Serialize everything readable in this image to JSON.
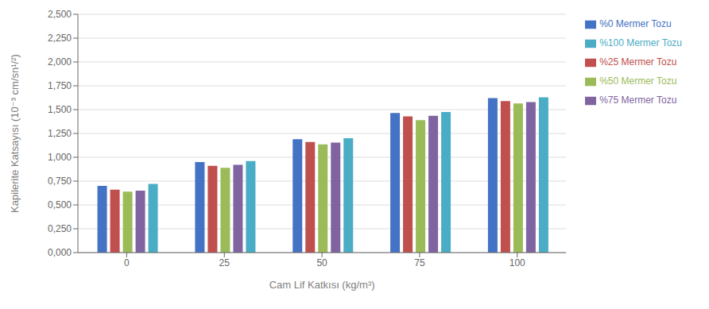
{
  "chart_data": {
    "type": "bar",
    "xlabel": "Cam Lif Katkısı (kg/m³)",
    "ylabel": "Kapilerite Katsayısı (10⁻³ cm/sn¹/²)",
    "categories": [
      "0",
      "25",
      "50",
      "75",
      "100"
    ],
    "series": [
      {
        "name": "%0 Mermer Tozu",
        "color": "#4472C4",
        "values": [
          0.7,
          0.95,
          1.19,
          1.465,
          1.62
        ]
      },
      {
        "name": "%25 Mermer Tozu",
        "color": "#C0504D",
        "values": [
          0.66,
          0.91,
          1.16,
          1.43,
          1.59
        ]
      },
      {
        "name": "%50 Mermer Tozu",
        "color": "#9BBB59",
        "values": [
          0.64,
          0.89,
          1.135,
          1.39,
          1.565
        ]
      },
      {
        "name": "%75 Mermer Tozu",
        "color": "#8064A2",
        "values": [
          0.65,
          0.92,
          1.155,
          1.435,
          1.58
        ]
      },
      {
        "name": "%100 Mermer Tozu",
        "color": "#4BACC6",
        "values": [
          0.72,
          0.96,
          1.2,
          1.475,
          1.63
        ]
      }
    ],
    "ylim": [
      0.0,
      2.5
    ],
    "yticks": [
      {
        "value": 0.0,
        "label": "0,000"
      },
      {
        "value": 0.25,
        "label": "0,250"
      },
      {
        "value": 0.5,
        "label": "0,500"
      },
      {
        "value": 0.75,
        "label": "0,750"
      },
      {
        "value": 1.0,
        "label": "1,000"
      },
      {
        "value": 1.25,
        "label": "1,250"
      },
      {
        "value": 1.5,
        "label": "1,500"
      },
      {
        "value": 1.75,
        "label": "1,750"
      },
      {
        "value": 2.0,
        "label": "2,000"
      },
      {
        "value": 2.25,
        "label": "2,250"
      },
      {
        "value": 2.5,
        "label": "2,500"
      }
    ],
    "grid": true,
    "legend": "right"
  }
}
